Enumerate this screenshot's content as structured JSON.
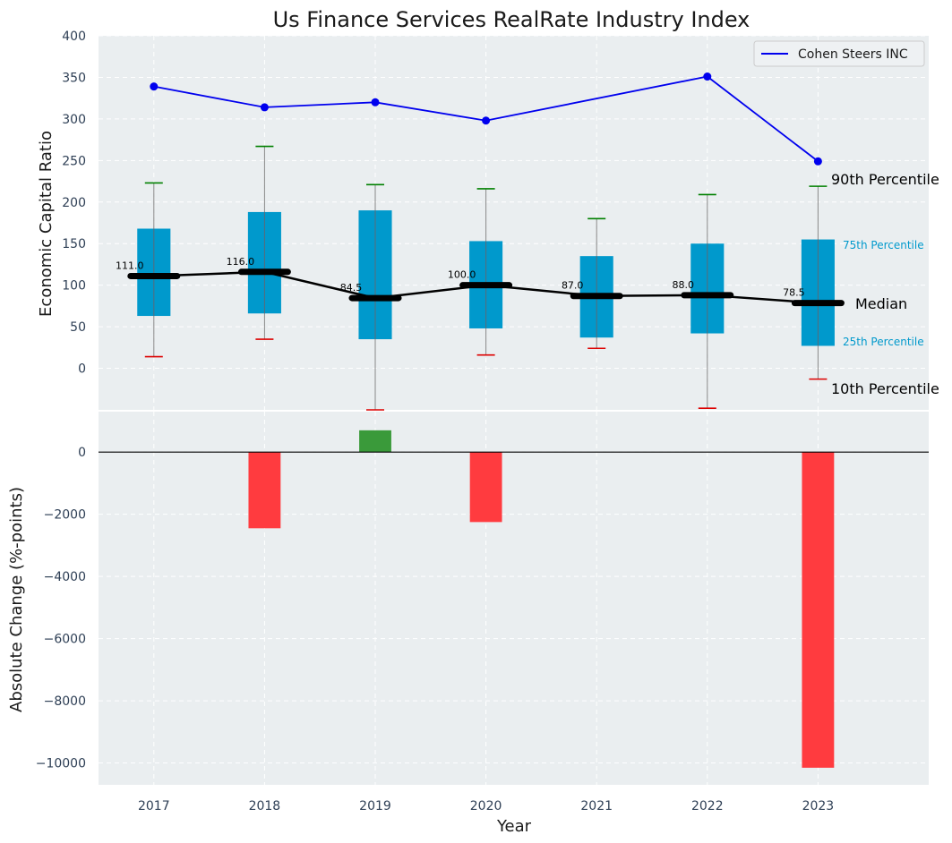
{
  "chart_data": [
    {
      "type": "box",
      "title": "Us Finance Services RealRate Industry Index",
      "ylabel": "Economic Capital Ratio",
      "ylim": [
        -50,
        400
      ],
      "yticks": [
        0,
        50,
        100,
        150,
        200,
        250,
        300,
        350,
        400
      ],
      "categories": [
        "2017",
        "2018",
        "2019",
        "2020",
        "2021",
        "2022",
        "2023"
      ],
      "boxes": [
        {
          "year": "2017",
          "p10": 14,
          "p25": 63,
          "median": 111.0,
          "p75": 168,
          "p90": 223
        },
        {
          "year": "2018",
          "p10": 35,
          "p25": 66,
          "median": 116.0,
          "p75": 188,
          "p90": 267
        },
        {
          "year": "2019",
          "p10": -50,
          "p25": 35,
          "median": 84.5,
          "p75": 190,
          "p90": 221
        },
        {
          "year": "2020",
          "p10": 16,
          "p25": 48,
          "median": 100.0,
          "p75": 153,
          "p90": 216
        },
        {
          "year": "2021",
          "p10": 24,
          "p25": 37,
          "median": 87.0,
          "p75": 135,
          "p90": 180
        },
        {
          "year": "2022",
          "p10": -48,
          "p25": 42,
          "median": 88.0,
          "p75": 150,
          "p90": 209
        },
        {
          "year": "2023",
          "p10": -13,
          "p25": 27,
          "median": 78.5,
          "p75": 155,
          "p90": 219
        }
      ],
      "median_labels": [
        "111.0",
        "116.0",
        "84.5",
        "100.0",
        "87.0",
        "88.0",
        "78.5"
      ],
      "series": [
        {
          "name": "Cohen Steers INC",
          "values": [
            339,
            314,
            320,
            298,
            null,
            351,
            249
          ]
        }
      ],
      "line_x": [
        "2017",
        "2018",
        "2019",
        "2020",
        "2022",
        "2023"
      ],
      "line_y": [
        339,
        314,
        320,
        298,
        351,
        249
      ],
      "annotations": {
        "p90": "90th Percentile",
        "p75": "75th Percentile",
        "median": "Median",
        "p25": "25th Percentile",
        "p10": "10th Percentile"
      },
      "legend_placement": "top-right",
      "grid": true,
      "colors": {
        "box": "#0099cc",
        "line": "#0000ee",
        "median": "#000000",
        "p90_cap": "#008000",
        "p10_cap": "#dd0000"
      }
    },
    {
      "type": "bar",
      "ylabel": "Absolute Change (%-points)",
      "xlabel": "Year",
      "ylim": [
        -10700,
        1300
      ],
      "yticks": [
        -10000,
        -8000,
        -6000,
        -4000,
        -2000,
        0
      ],
      "ytick_labels": [
        "−10000",
        "−8000",
        "−6000",
        "−4000",
        "−2000",
        "0"
      ],
      "categories": [
        "2017",
        "2018",
        "2019",
        "2020",
        "2021",
        "2022",
        "2023"
      ],
      "values": [
        0,
        -2450,
        700,
        -2250,
        0,
        0,
        -10150
      ],
      "grid": true,
      "colors": {
        "positive": "#3a9a3a",
        "negative": "#ff3b3f"
      }
    }
  ]
}
